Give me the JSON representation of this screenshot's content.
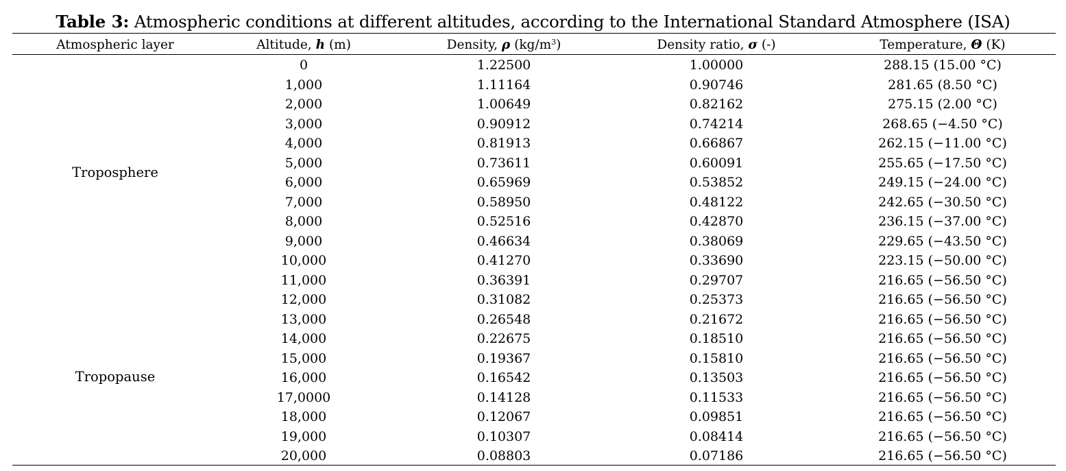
{
  "table": {
    "caption_label": "Table 3:",
    "caption_text": " Atmospheric conditions at different altitudes, according to the International Standard Atmosphere (ISA)",
    "headers": {
      "layer": "Atmospheric layer",
      "altitude_pre": "Altitude, ",
      "altitude_sym": "h",
      "altitude_post": " (m)",
      "density_pre": "Density, ",
      "density_sym": "ρ",
      "density_unit_pre": " (kg/m",
      "density_unit_sup": "3",
      "density_unit_post": ")",
      "ratio_pre": "Density ratio, ",
      "ratio_sym": "σ",
      "ratio_post": " (-)",
      "temp_pre": "Temperature, ",
      "temp_sym": "Θ",
      "temp_post": " (K)"
    },
    "layers": {
      "troposphere": "Troposphere",
      "tropopause": "Tropopause"
    },
    "rows": [
      {
        "altitude": "0",
        "density": "1.22500",
        "ratio": "1.00000",
        "temp": "288.15 (15.00 °C)"
      },
      {
        "altitude": "1,000",
        "density": "1.11164",
        "ratio": "0.90746",
        "temp": "281.65 (8.50 °C)"
      },
      {
        "altitude": "2,000",
        "density": "1.00649",
        "ratio": "0.82162",
        "temp": "275.15 (2.00 °C)"
      },
      {
        "altitude": "3,000",
        "density": "0.90912",
        "ratio": "0.74214",
        "temp": "268.65 (−4.50 °C)"
      },
      {
        "altitude": "4,000",
        "density": "0.81913",
        "ratio": "0.66867",
        "temp": "262.15 (−11.00 °C)"
      },
      {
        "altitude": "5,000",
        "density": "0.73611",
        "ratio": "0.60091",
        "temp": "255.65 (−17.50 °C)"
      },
      {
        "altitude": "6,000",
        "density": "0.65969",
        "ratio": "0.53852",
        "temp": "249.15 (−24.00 °C)"
      },
      {
        "altitude": "7,000",
        "density": "0.58950",
        "ratio": "0.48122",
        "temp": "242.65 (−30.50 °C)"
      },
      {
        "altitude": "8,000",
        "density": "0.52516",
        "ratio": "0.42870",
        "temp": "236.15 (−37.00 °C)"
      },
      {
        "altitude": "9,000",
        "density": "0.46634",
        "ratio": "0.38069",
        "temp": "229.65 (−43.50 °C)"
      },
      {
        "altitude": "10,000",
        "density": "0.41270",
        "ratio": "0.33690",
        "temp": "223.15 (−50.00 °C)"
      },
      {
        "altitude": "11,000",
        "density": "0.36391",
        "ratio": "0.29707",
        "temp": "216.65 (−56.50 °C)"
      },
      {
        "altitude": "12,000",
        "density": "0.31082",
        "ratio": "0.25373",
        "temp": "216.65 (−56.50 °C)"
      },
      {
        "altitude": "13,000",
        "density": "0.26548",
        "ratio": "0.21672",
        "temp": "216.65 (−56.50 °C)"
      },
      {
        "altitude": "14,000",
        "density": "0.22675",
        "ratio": "0.18510",
        "temp": "216.65 (−56.50 °C)"
      },
      {
        "altitude": "15,000",
        "density": "0.19367",
        "ratio": "0.15810",
        "temp": "216.65 (−56.50 °C)"
      },
      {
        "altitude": "16,000",
        "density": "0.16542",
        "ratio": "0.13503",
        "temp": "216.65 (−56.50 °C)"
      },
      {
        "altitude": "17,0000",
        "density": "0.14128",
        "ratio": "0.11533",
        "temp": "216.65 (−56.50 °C)"
      },
      {
        "altitude": "18,000",
        "density": "0.12067",
        "ratio": "0.09851",
        "temp": "216.65 (−56.50 °C)"
      },
      {
        "altitude": "19,000",
        "density": "0.10307",
        "ratio": "0.08414",
        "temp": "216.65 (−56.50 °C)"
      },
      {
        "altitude": "20,000",
        "density": "0.08803",
        "ratio": "0.07186",
        "temp": "216.65 (−56.50 °C)"
      }
    ]
  }
}
